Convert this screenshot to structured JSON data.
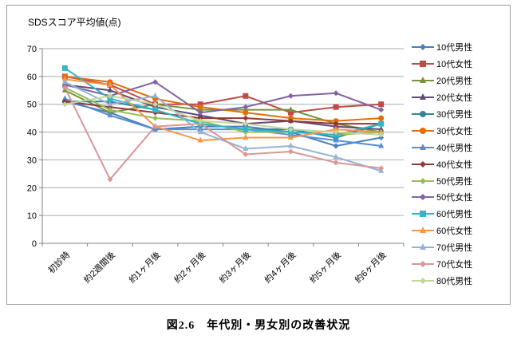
{
  "caption": "図2.6　年代別・男女別の改善状況",
  "chart_data": {
    "type": "line",
    "title": "SDSスコア平均値(点)",
    "xlabel": "",
    "ylabel": "",
    "ylim": [
      0,
      70
    ],
    "ytick_step": 10,
    "grid": true,
    "legend_position": "right",
    "categories": [
      "初診時",
      "約2週間後",
      "約1ヶ月後",
      "約2ヶ月後",
      "約3ヶ月後",
      "約4ヶ月後",
      "約5ヶ月後",
      "約6ヶ月後"
    ],
    "series": [
      {
        "name": "10代男性",
        "color": "#4A7EBB",
        "marker": "diamond",
        "values": [
          51,
          47,
          41,
          42,
          42,
          40,
          35,
          38
        ]
      },
      {
        "name": "10代女性",
        "color": "#BE4B48",
        "marker": "square",
        "values": [
          60,
          57,
          50,
          50,
          53,
          47,
          49,
          50
        ]
      },
      {
        "name": "20代男性",
        "color": "#77933C",
        "marker": "triangle",
        "values": [
          55,
          47,
          50,
          48,
          48,
          48,
          43,
          40
        ]
      },
      {
        "name": "20代女性",
        "color": "#604A7B",
        "marker": "triangle",
        "values": [
          57,
          55,
          49,
          46,
          43,
          44,
          42,
          41
        ]
      },
      {
        "name": "30代男性",
        "color": "#31849B",
        "marker": "circle",
        "values": [
          51,
          51,
          48,
          43,
          41,
          41,
          38,
          43
        ]
      },
      {
        "name": "30代女性",
        "color": "#E46D0A",
        "marker": "circle",
        "values": [
          60,
          58,
          52,
          49,
          47,
          45,
          44,
          45
        ]
      },
      {
        "name": "40代男性",
        "color": "#558ED5",
        "marker": "triangle",
        "values": [
          52,
          46,
          41,
          41,
          41,
          39,
          37,
          35
        ]
      },
      {
        "name": "40代女性",
        "color": "#953735",
        "marker": "diamond",
        "values": [
          51,
          49,
          47,
          45,
          45,
          44,
          43,
          43
        ]
      },
      {
        "name": "50代男性",
        "color": "#9BBB59",
        "marker": "diamond",
        "values": [
          56,
          48,
          45,
          44,
          40,
          40,
          39,
          40
        ]
      },
      {
        "name": "50代女性",
        "color": "#8064A2",
        "marker": "diamond",
        "values": [
          57,
          53,
          58,
          47,
          49,
          53,
          54,
          48
        ]
      },
      {
        "name": "60代男性",
        "color": "#31B6CB",
        "marker": "square",
        "values": [
          63,
          52,
          48,
          43,
          41,
          40,
          39,
          43
        ]
      },
      {
        "name": "60代女性",
        "color": "#F79646",
        "marker": "triangle",
        "values": [
          59,
          57,
          42,
          37,
          38,
          38,
          41,
          40
        ]
      },
      {
        "name": "70代男性",
        "color": "#95B3D7",
        "marker": "triangle",
        "values": [
          58,
          50,
          53,
          40,
          34,
          35,
          31,
          26
        ]
      },
      {
        "name": "70代女性",
        "color": "#D99694",
        "marker": "diamond",
        "values": [
          56,
          23,
          42,
          43,
          32,
          33,
          29,
          27
        ]
      },
      {
        "name": "80代男性",
        "color": "#C3D69B",
        "marker": "diamond",
        "values": [
          50,
          53,
          50,
          44,
          43,
          41,
          40,
          39
        ]
      }
    ]
  },
  "colors": {
    "gridline": "#ABABAB",
    "axis": "#808080",
    "frame_border": "#9A9A9A",
    "text": "#000000"
  }
}
